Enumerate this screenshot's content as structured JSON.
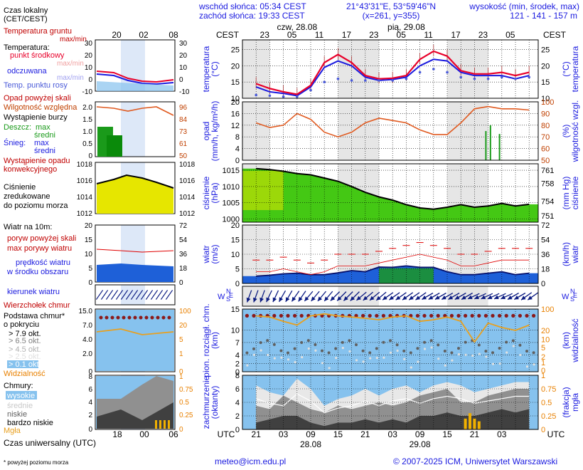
{
  "header": {
    "sunrise": "wschód słońca: 05:34 CEST",
    "sunset": "zachód słońca: 19:33 CEST",
    "coords": "21°43'31\"E, 53°59'46\"N",
    "grid": "(x=261, y=355)",
    "elevation_title": "wysokość (min, środek, max)",
    "elevation_values": "121 - 141 - 157 m"
  },
  "legend": {
    "time_local": "Czas lokalny",
    "time_local_sub": "(CET/CEST)",
    "ground_temp": "Temperatura gruntu",
    "ground_temp_sub": "max/min",
    "temperature": "Temperatura:",
    "mid_point": "punkt środkowy",
    "mid_point_sub": "max/min",
    "feels_like": "odczuwana",
    "feels_sub": "max/min",
    "dew_point": "Temp. punktu rosy",
    "precip_above": "Opad powyżej skali",
    "humidity": "Wilgotność względna",
    "storm": "Wystąpienie burzy",
    "rain": "Deszcz:",
    "rain_max": "max",
    "rain_mid": "średni",
    "snow": "Śnieg:",
    "snow_max": "max",
    "snow_mid": "średni",
    "conv1": "Wystąpienie opadu",
    "conv2": "konwekcyjnego",
    "pressure1": "Ciśnienie",
    "pressure2": "zredukowane",
    "pressure3": "do poziomu morza",
    "wind_title": "Wiatr na 10m:",
    "gust_above": "poryw powyżej skali",
    "gust_max": "max porywy wiatru",
    "wind_speed1": "prędkość wiatru",
    "wind_speed2": "w środku obszaru",
    "wind_dir": "kierunek wiatru",
    "cloud_top": "Wierzchołek chmur",
    "cloud_base1": "Podstawa chmur*",
    "cloud_base2": "o pokryciu",
    "okt79": "> 7.9 okt.",
    "okt65": "> 6.5 okt.",
    "okt45": "> 4.5 okt.",
    "okt25": "> 2.5 okt.",
    "okt01": "> 0.1 okt.",
    "visibility": "Widzialność",
    "clouds": "Chmury:",
    "high": "wysokie",
    "medium": "średnie",
    "low": "niskie",
    "very_low": "bardzo niskie",
    "fog": "Mgła",
    "utc_label": "Czas uniwersalny (UTC)",
    "footnote": "* powyżej poziomu morza"
  },
  "axis_titles": {
    "cest": "CEST",
    "utc": "UTC",
    "temp_l": "temperatura",
    "temp_l2": "(°C)",
    "temp_r": "temperatura",
    "temp_r2": "(°C)",
    "precip_l": "opad",
    "precip_l2": "(mm/h, kg/m²/h)",
    "hum_r": "wilgotność wzgl.",
    "hum_r2": "(%)",
    "press_l": "ciśnienie",
    "press_l2": "(hPa)",
    "press_r": "ciśnienie",
    "press_r2": "(mm Hg)",
    "wind_l": "wiatr",
    "wind_l2": "(m/s)",
    "wind_r": "wiatr",
    "wind_r2": "(km/h)",
    "cloud_l": "pion. rozciągł. chm.",
    "cloud_l2": "(km)",
    "vis_r": "widzialność",
    "vis_r2": "(km)",
    "cov_l": "zachmurzenie",
    "cov_l2": "(oktanty)",
    "fog_r": "mgła",
    "fog_r2": "(frakcja)"
  },
  "footer": {
    "email": "meteo@icm.edu.pl",
    "copyright": "© 2007-2025 ICM, Uniwersytet Warszawski"
  },
  "colors": {
    "temp": "#e8002a",
    "feels": "#1a1adf",
    "dew": "#4a5ad8",
    "humidity": "#e05a20",
    "pressure_fill": "#44c814",
    "pressure_hi": "#e6e600",
    "wind_fill": "#1e60d8",
    "wind_green": "#1a9a1a",
    "gust": "#e00000",
    "cloud_bg": "#86c2ee",
    "visibility": "#e8a020",
    "arrow": "#0a1a80",
    "day_band": "#e6e6e6",
    "legend_day": "#dde8f8"
  },
  "chart_data": [
    {
      "id": "main_temperature",
      "type": "line",
      "ylim": [
        10,
        28
      ],
      "yticks": [
        10,
        15,
        20,
        25
      ],
      "x_hours": [
        0,
        3,
        6,
        9,
        12,
        15,
        18,
        21,
        24,
        27,
        30,
        33,
        36,
        39,
        42,
        45,
        48,
        51,
        54,
        57,
        60
      ],
      "temperature": [
        14.5,
        13.0,
        12.0,
        11.2,
        14.0,
        21.0,
        23.5,
        21.0,
        17.0,
        16.0,
        16.2,
        17.0,
        22.0,
        24.5,
        23.0,
        18.5,
        17.5,
        17.5,
        18.0,
        17.0,
        18.0
      ],
      "feels_like": [
        13.5,
        12.0,
        11.5,
        10.8,
        13.5,
        19.5,
        21.5,
        20.0,
        16.5,
        15.5,
        15.8,
        16.5,
        20.0,
        22.0,
        21.5,
        18.0,
        17.0,
        17.0,
        17.0,
        16.0,
        17.0
      ],
      "dew_point": [
        11.0,
        10.8,
        10.5,
        10.5,
        12.5,
        15.0,
        16.0,
        15.5,
        15.5,
        15.5,
        15.5,
        16.0,
        18.0,
        19.0,
        18.0,
        16.5,
        16.0,
        16.0,
        16.5,
        16.0,
        16.5
      ],
      "x_cest_labels": [
        "23",
        "05",
        "11",
        "17",
        "23",
        "05",
        "11",
        "17",
        "23",
        "05"
      ],
      "x_utc_labels": [
        "21",
        "03",
        "09",
        "15",
        "21",
        "03",
        "09",
        "15",
        "21",
        "03"
      ],
      "dates_top": [
        "czw, 28.08",
        "pią, 29.08"
      ],
      "dates_bottom": [
        "28.08",
        "29.08"
      ]
    },
    {
      "id": "main_precipitation_humidity",
      "type": "line",
      "ylim": [
        0,
        20
      ],
      "yticks": [
        0,
        4,
        8,
        12,
        16,
        20
      ],
      "y2lim": [
        50,
        100
      ],
      "y2ticks": [
        50,
        60,
        70,
        80,
        90,
        100
      ],
      "humidity": [
        82,
        78,
        80,
        90,
        85,
        74,
        70,
        74,
        82,
        86,
        84,
        82,
        76,
        72,
        72,
        82,
        94,
        96,
        94,
        94,
        93
      ],
      "precip_spikes": [
        {
          "h": 50.5,
          "v": 10
        },
        {
          "h": 51.5,
          "v": 12
        },
        {
          "h": 53.5,
          "v": 9
        }
      ]
    },
    {
      "id": "main_pressure",
      "type": "area",
      "ylim": [
        999,
        1017
      ],
      "yticks": [
        1000,
        1005,
        1010,
        1015
      ],
      "y2ticks": [
        751,
        754,
        758,
        761
      ],
      "pressure": [
        1015.5,
        1015.2,
        1014.7,
        1014.0,
        1013.6,
        1012.6,
        1011.6,
        1010.0,
        1008.2,
        1006.8,
        1005.8,
        1004.4,
        1003.4,
        1003.0,
        1003.6,
        1004.4,
        1003.6,
        1004.0,
        1004.8,
        1004.0,
        1004.5
      ]
    },
    {
      "id": "main_wind",
      "type": "area",
      "ylim": [
        0,
        20
      ],
      "yticks": [
        0,
        5,
        10,
        15,
        20
      ],
      "y2ticks": [
        0,
        18,
        36,
        54,
        72
      ],
      "wind_speed": [
        2.5,
        2.8,
        3.3,
        3.5,
        3.0,
        3.0,
        3.6,
        4.4,
        4.0,
        5.6,
        5.5,
        6.0,
        5.5,
        5.5,
        4.0,
        3.0,
        3.0,
        3.5,
        4.0,
        3.0,
        3.5
      ],
      "gusts": [
        8,
        8,
        9,
        8,
        7,
        8,
        10,
        10,
        10,
        11,
        12,
        13,
        14,
        13,
        12,
        10,
        10,
        11,
        12,
        12,
        12
      ]
    },
    {
      "id": "main_wind_direction",
      "type": "scatter",
      "directions_deg": [
        200,
        205,
        210,
        215,
        220,
        220,
        225,
        225,
        230,
        230,
        235,
        235,
        235,
        240,
        240,
        240,
        245,
        245,
        245,
        240,
        235
      ]
    },
    {
      "id": "main_cloud_visibility",
      "type": "scatter",
      "ylim": [
        0,
        15
      ],
      "yticks": [
        0,
        2,
        4,
        7,
        10,
        15
      ],
      "y2ticks": [
        0,
        1,
        2,
        5,
        10,
        20,
        100
      ],
      "visibility": [
        60,
        55,
        40,
        30,
        60,
        70,
        60,
        55,
        50,
        45,
        55,
        60,
        40,
        45,
        55,
        40,
        8,
        35,
        25,
        20,
        30
      ]
    },
    {
      "id": "main_cloud_cover",
      "type": "area",
      "ylim": [
        0,
        8
      ],
      "yticks": [
        0,
        2,
        4,
        6,
        8
      ],
      "y2ticks": [
        0,
        0.25,
        0.5,
        0.75,
        1
      ],
      "high": [
        6.5,
        5.5,
        5.0,
        7.5,
        6.0,
        3.5,
        4.5,
        5.0,
        6.0,
        5.0,
        6.0,
        6.5,
        5.5,
        6.5,
        7.0,
        6.5,
        5.5,
        6.0,
        6.5,
        7.0,
        7.0
      ],
      "medium": [
        3.5,
        3.0,
        5.0,
        4.0,
        3.0,
        2.5,
        3.5,
        3.0,
        3.5,
        4.0,
        3.5,
        4.0,
        5.0,
        5.5,
        6.0,
        4.0,
        4.0,
        5.0,
        5.5,
        6.0,
        6.0
      ],
      "low": [
        1.0,
        1.5,
        2.0,
        2.0,
        1.0,
        0.5,
        1.0,
        1.0,
        1.5,
        1.0,
        1.5,
        1.0,
        2.0,
        2.0,
        2.5,
        2.0,
        2.0,
        2.5,
        3.0,
        2.5,
        3.0
      ],
      "fog_bars": [
        {
          "h": 46.0,
          "v": 0.2
        },
        {
          "h": 47.0,
          "v": 0.3
        },
        {
          "h": 48.0,
          "v": 0.2
        },
        {
          "h": 49.0,
          "v": 0.15
        }
      ]
    }
  ]
}
